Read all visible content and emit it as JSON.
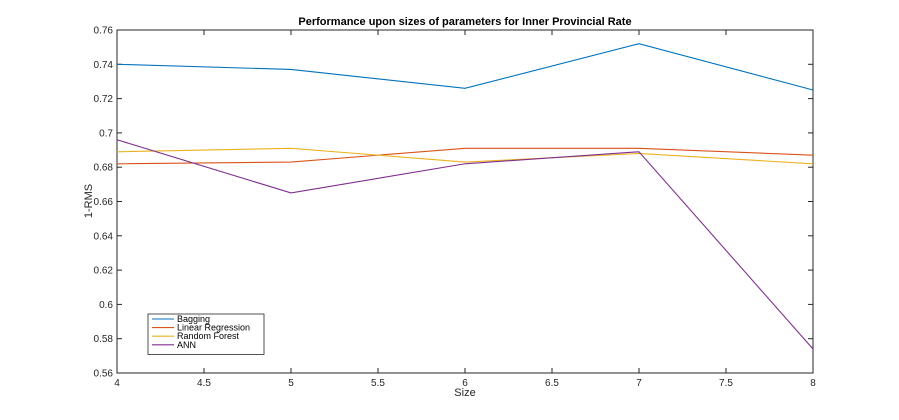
{
  "chart_data": {
    "type": "line",
    "title": "Performance upon sizes of parameters for Inner Provincial Rate",
    "xlabel": "Size",
    "ylabel": "1-RMS",
    "xlim": [
      4,
      8
    ],
    "ylim": [
      0.56,
      0.76
    ],
    "xticks": [
      "4",
      "4.5",
      "5",
      "5.5",
      "6",
      "6.5",
      "7",
      "7.5",
      "8"
    ],
    "yticks": [
      "0.56",
      "0.58",
      "0.6",
      "0.62",
      "0.64",
      "0.66",
      "0.68",
      "0.7",
      "0.72",
      "0.74",
      "0.76"
    ],
    "x": [
      4,
      5,
      6,
      7,
      8
    ],
    "grid": false,
    "legend_position": "bottom-left",
    "series": [
      {
        "name": "Bagging",
        "color": "#0072bd",
        "values": [
          0.74,
          0.737,
          0.726,
          0.752,
          0.725
        ]
      },
      {
        "name": "Linear Regression",
        "color": "#d95319",
        "values": [
          0.682,
          0.683,
          0.691,
          0.691,
          0.687
        ]
      },
      {
        "name": "Random Forest",
        "color": "#edb120",
        "values": [
          0.689,
          0.691,
          0.683,
          0.688,
          0.682
        ]
      },
      {
        "name": "ANN",
        "color": "#7e2f8e",
        "values": [
          0.696,
          0.665,
          0.682,
          0.689,
          0.574
        ]
      }
    ]
  }
}
